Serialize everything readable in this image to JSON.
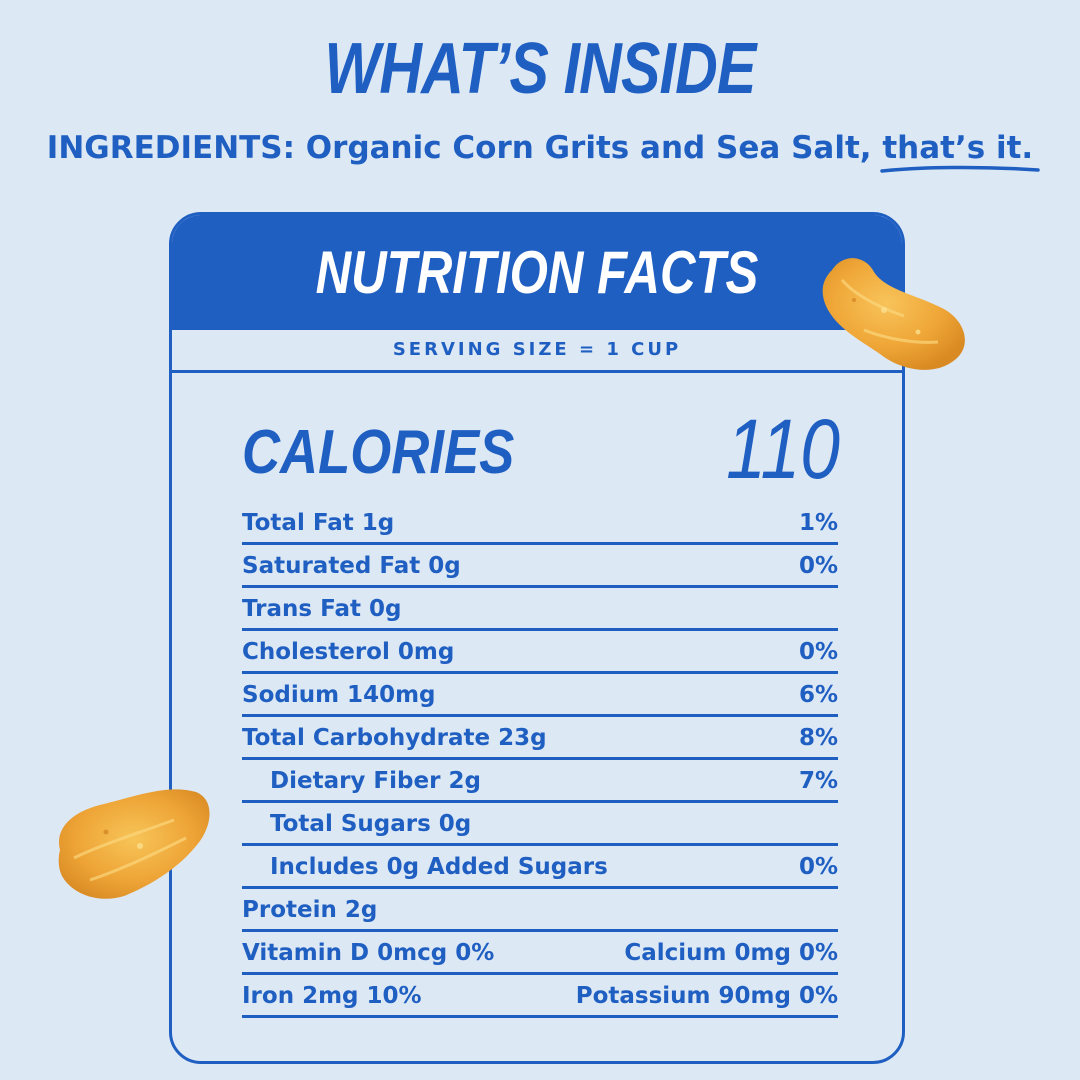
{
  "headline": "WHAT’S INSIDE",
  "ingredients": {
    "prefix": "INGREDIENTS: Organic Corn Grits and Sea Salt, ",
    "emphasis": "that’s it."
  },
  "label": {
    "title": "NUTRITION FACTS",
    "serving_size": "SERVING SIZE = 1 CUP",
    "calories_label": "CALORIES",
    "calories_value": "110",
    "rows": [
      {
        "left": "Total Fat 1g",
        "right": "1%"
      },
      {
        "left": "Saturated Fat 0g",
        "right": "0%"
      },
      {
        "left": "Trans Fat 0g",
        "right": ""
      },
      {
        "left": "Cholesterol 0mg",
        "right": "0%"
      },
      {
        "left": "Sodium 140mg",
        "right": "6%"
      },
      {
        "left": "Total Carbohydrate 23g",
        "right": "8%"
      },
      {
        "left": "Dietary Fiber 2g",
        "right": "7%"
      },
      {
        "left": "Total Sugars 0g",
        "right": ""
      },
      {
        "left": "Includes 0g Added Sugars",
        "right": "0%"
      },
      {
        "left": "Protein 2g",
        "right": ""
      },
      {
        "left": "Vitamin D 0mcg 0%",
        "right": "Calcium 0mg 0%"
      },
      {
        "left": "Iron 2mg 10%",
        "right": "Potassium 90mg 0%"
      }
    ]
  },
  "colors": {
    "brand_blue": "#1f5fc2",
    "background": "#dde8f5",
    "chip_orange": "#f0a93a"
  },
  "decorations": [
    "corn-flake-image",
    "corn-flake-image"
  ]
}
